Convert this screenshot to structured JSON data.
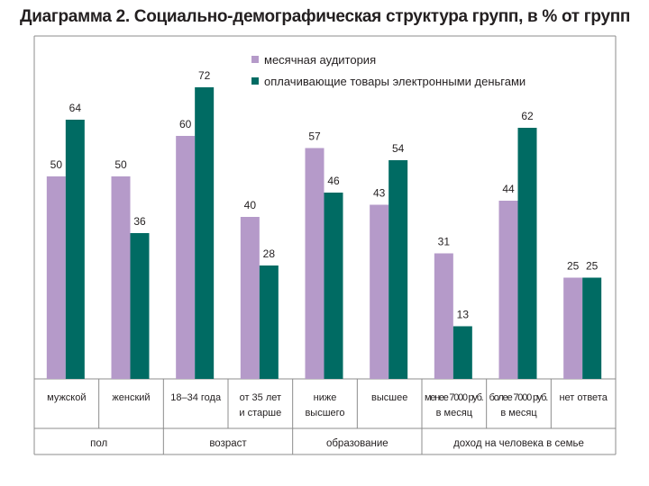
{
  "title": "Диаграмма 2. Социально-демографическая структура групп, в % от групп",
  "colors": {
    "audience": "#b59ac9",
    "paying": "#006b63",
    "axis": "#8c8c8c"
  },
  "chart_data": {
    "type": "bar",
    "title": "Диаграмма 2. Социально-демографическая структура групп, в % от групп",
    "xlabel": "",
    "ylabel": "",
    "ylim": [
      0,
      80
    ],
    "grid": false,
    "legend_position": "top-right",
    "categories": [
      [
        "мужской"
      ],
      [
        "женский"
      ],
      [
        "18–34 года"
      ],
      [
        "от 35 лет",
        "и старше"
      ],
      [
        "ниже",
        "высшего"
      ],
      [
        "высшее"
      ],
      [
        "менее 7000 руб.",
        "в месяц"
      ],
      [
        "более 7000 руб.",
        "в месяц"
      ],
      [
        "нет ответа"
      ]
    ],
    "series": [
      {
        "name": "месячная аудитория",
        "color": "#b59ac9",
        "values": [
          50,
          50,
          60,
          40,
          57,
          43,
          31,
          44,
          25
        ]
      },
      {
        "name": "оплачивающие  товары электронными деньгами",
        "color": "#006b63",
        "values": [
          64,
          36,
          72,
          28,
          46,
          54,
          13,
          62,
          25
        ]
      }
    ],
    "groups": [
      {
        "label": "пол",
        "categories": [
          0,
          1
        ]
      },
      {
        "label": "возраст",
        "categories": [
          2,
          3
        ]
      },
      {
        "label": "образование",
        "categories": [
          4,
          5
        ]
      },
      {
        "label": "доход на человека в семье",
        "categories": [
          6,
          7,
          8
        ]
      }
    ]
  }
}
